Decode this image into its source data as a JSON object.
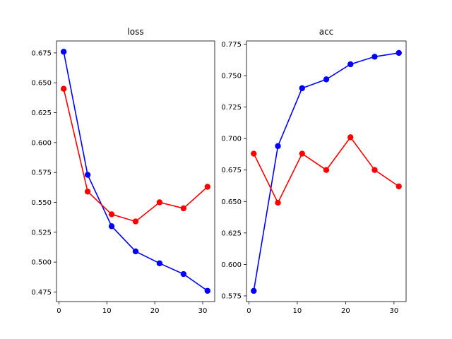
{
  "chart_data": [
    {
      "type": "line",
      "title": "loss",
      "xlabel": "",
      "ylabel": "",
      "x": [
        1,
        6,
        11,
        16,
        21,
        26,
        31
      ],
      "xlim": [
        -0.5,
        32.5
      ],
      "ylim": [
        0.467,
        0.685
      ],
      "xticks": [
        0,
        10,
        20,
        30
      ],
      "yticks": [
        0.475,
        0.5,
        0.525,
        0.55,
        0.575,
        0.6,
        0.625,
        0.65,
        0.675
      ],
      "ytick_labels": [
        "0.475",
        "0.500",
        "0.525",
        "0.550",
        "0.575",
        "0.600",
        "0.625",
        "0.650",
        "0.675"
      ],
      "grid": false,
      "series": [
        {
          "color": "#0000ff",
          "values": [
            0.676,
            0.573,
            0.53,
            0.509,
            0.499,
            0.49,
            0.476
          ]
        },
        {
          "color": "#ff0000",
          "values": [
            0.645,
            0.559,
            0.54,
            0.534,
            0.55,
            0.545,
            0.563
          ]
        }
      ]
    },
    {
      "type": "line",
      "title": "acc",
      "xlabel": "",
      "ylabel": "",
      "x": [
        1,
        6,
        11,
        16,
        21,
        26,
        31
      ],
      "xlim": [
        -0.5,
        32.5
      ],
      "ylim": [
        0.5705,
        0.7775
      ],
      "xticks": [
        0,
        10,
        20,
        30
      ],
      "yticks": [
        0.575,
        0.6,
        0.625,
        0.65,
        0.675,
        0.7,
        0.725,
        0.75,
        0.775
      ],
      "ytick_labels": [
        "0.575",
        "0.600",
        "0.625",
        "0.650",
        "0.675",
        "0.700",
        "0.725",
        "0.750",
        "0.775"
      ],
      "grid": false,
      "series": [
        {
          "color": "#0000ff",
          "values": [
            0.579,
            0.694,
            0.74,
            0.747,
            0.759,
            0.765,
            0.768
          ]
        },
        {
          "color": "#ff0000",
          "values": [
            0.688,
            0.649,
            0.688,
            0.675,
            0.701,
            0.675,
            0.662
          ]
        }
      ]
    }
  ]
}
